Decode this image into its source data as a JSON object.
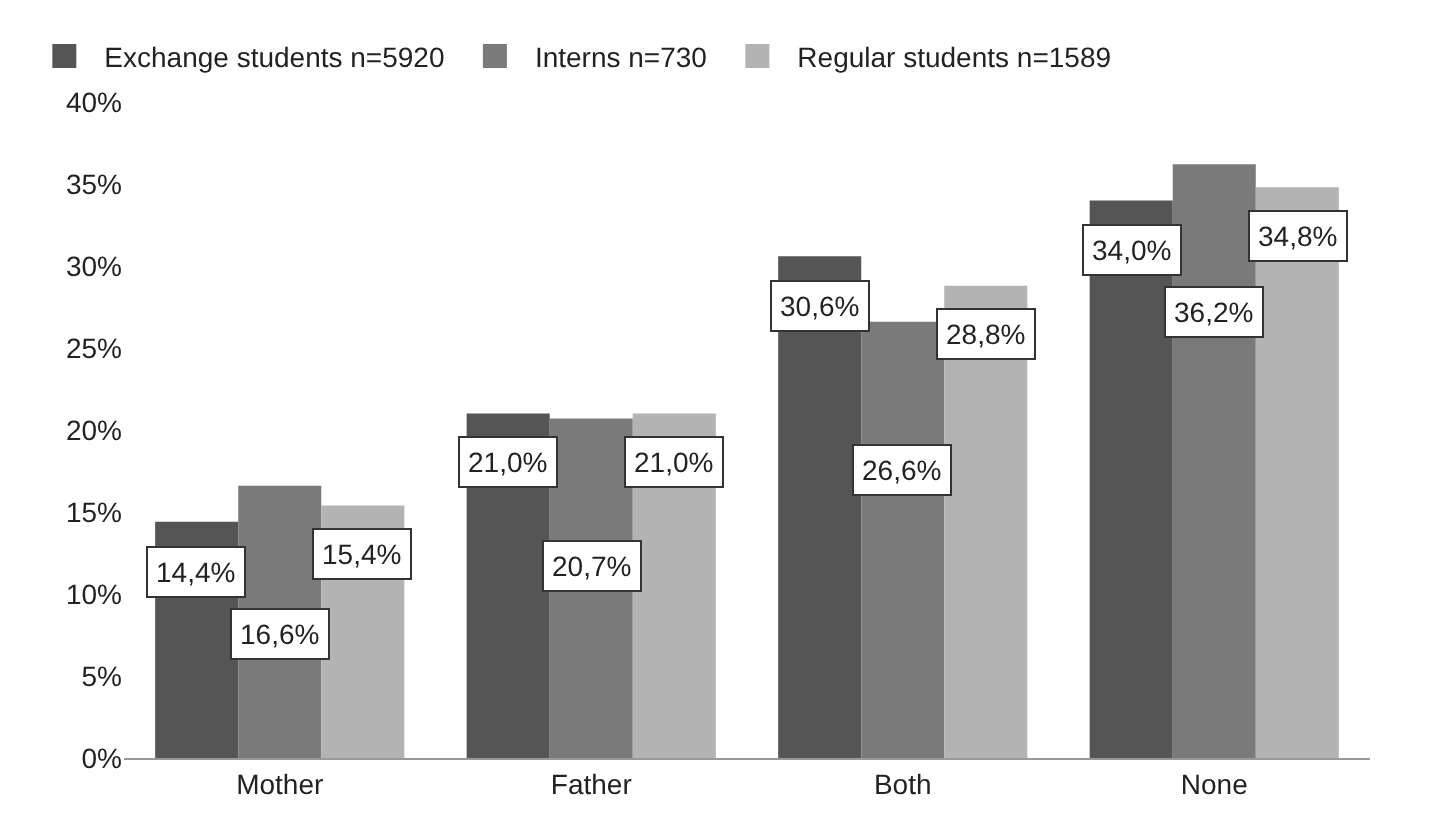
{
  "chart_data": {
    "type": "bar",
    "categories": [
      "Mother",
      "Father",
      "Both",
      "None"
    ],
    "series": [
      {
        "name": "Exchange students n=5920",
        "color": "#555555",
        "values": [
          14.4,
          21.0,
          30.6,
          34.0
        ],
        "value_labels": [
          "14,4%",
          "21,0%",
          "30,6%",
          "34,0%"
        ]
      },
      {
        "name": "Interns n=730",
        "color": "#7a7a7a",
        "values": [
          16.6,
          20.7,
          26.6,
          36.2
        ],
        "value_labels": [
          "16,6%",
          "20,7%",
          "26,6%",
          "36,2%"
        ]
      },
      {
        "name": "Regular students n=1589",
        "color": "#b3b3b3",
        "values": [
          15.4,
          21.0,
          28.8,
          34.8
        ],
        "value_labels": [
          "15,4%",
          "21,0%",
          "28,8%",
          "34,8%"
        ]
      }
    ],
    "ylim": [
      0,
      40
    ],
    "yticks": [
      {
        "value": 0,
        "label": "0%"
      },
      {
        "value": 5,
        "label": "5%"
      },
      {
        "value": 10,
        "label": "10%"
      },
      {
        "value": 15,
        "label": "15%"
      },
      {
        "value": 20,
        "label": "20%"
      },
      {
        "value": 25,
        "label": "25%"
      },
      {
        "value": 30,
        "label": "30%"
      },
      {
        "value": 35,
        "label": "35%"
      },
      {
        "value": 40,
        "label": "40%"
      }
    ],
    "legend": "top"
  }
}
